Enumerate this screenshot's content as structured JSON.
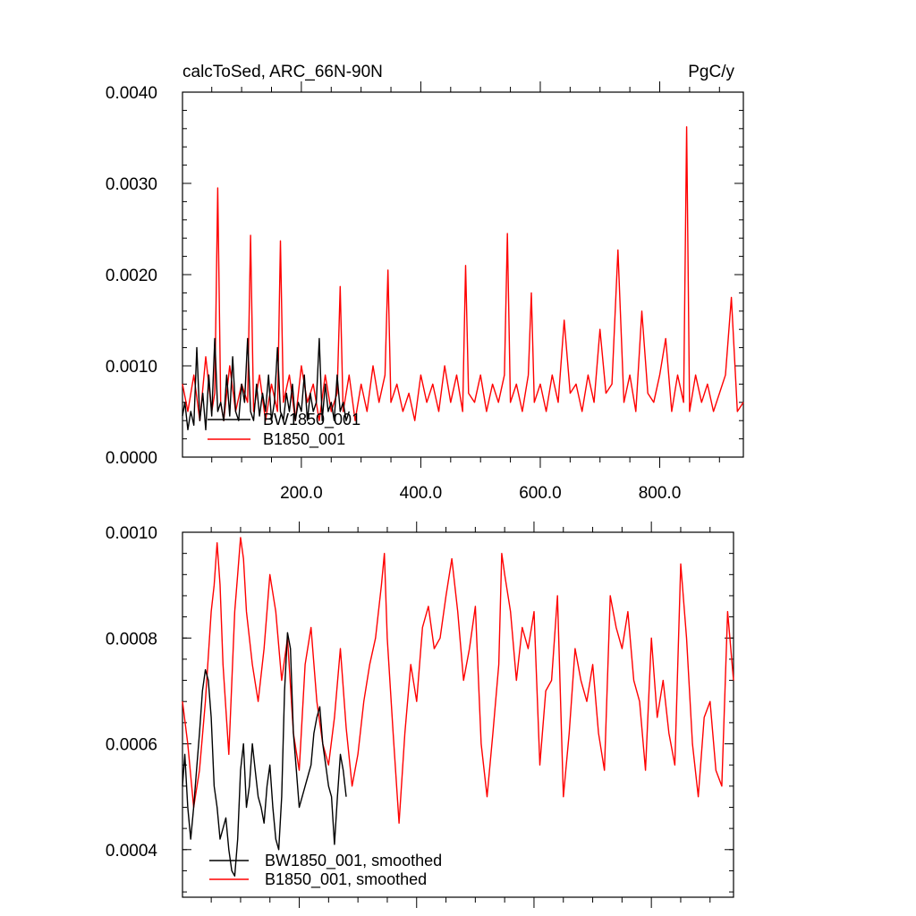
{
  "chart_data": [
    {
      "type": "line",
      "title": "calcToSed, ARC_66N-90N",
      "units": "PgC/y",
      "ylim": [
        0,
        0.004
      ],
      "xlim": [
        1,
        940
      ],
      "y_ticks": [
        0.0,
        0.001,
        0.002,
        0.003,
        0.004
      ],
      "y_tick_labels": [
        "0.0000",
        "0.0010",
        "0.0020",
        "0.0030",
        "0.0040"
      ],
      "x_ticks": [
        200,
        400,
        600,
        800
      ],
      "x_tick_labels": [
        "200.0",
        "400.0",
        "600.0",
        "800.0"
      ],
      "legend": [
        "BW1850_001",
        "B1850_001"
      ],
      "legend_placement": "bottom-left",
      "series": [
        {
          "name": "BW1850_001",
          "color": "#000000",
          "x": [
            1,
            5,
            10,
            15,
            20,
            25,
            30,
            35,
            40,
            45,
            50,
            55,
            60,
            65,
            70,
            75,
            80,
            85,
            90,
            95,
            100,
            105,
            110,
            115,
            120,
            125,
            130,
            135,
            140,
            145,
            150,
            155,
            160,
            165,
            170,
            175,
            180,
            185,
            190,
            195,
            200,
            205,
            210,
            215,
            220,
            225,
            230,
            235,
            240,
            245,
            250,
            255,
            260,
            265,
            270,
            275,
            280
          ],
          "values": [
            0.00045,
            0.0006,
            0.0003,
            0.0005,
            0.00035,
            0.0012,
            0.0004,
            0.0007,
            0.0003,
            0.0009,
            0.00045,
            0.0013,
            0.0005,
            0.0006,
            0.0004,
            0.0009,
            0.00045,
            0.0011,
            0.0005,
            0.0004,
            0.0008,
            0.0006,
            0.0013,
            0.0005,
            0.0004,
            0.0008,
            0.00045,
            0.0007,
            0.0005,
            0.0009,
            0.0004,
            0.0006,
            0.0012,
            0.0005,
            0.0004,
            0.0007,
            0.0005,
            0.0008,
            0.0004,
            0.0006,
            0.0005,
            0.0009,
            0.0004,
            0.0007,
            0.0005,
            0.0006,
            0.0013,
            0.0004,
            0.0008,
            0.0005,
            0.0006,
            0.0004,
            0.0009,
            0.0005,
            0.0006,
            0.0004,
            0.0005
          ]
        },
        {
          "name": "B1850_001",
          "color": "#ff0000",
          "x": [
            1,
            10,
            20,
            30,
            40,
            50,
            55,
            60,
            65,
            70,
            80,
            90,
            100,
            110,
            115,
            120,
            130,
            140,
            150,
            160,
            165,
            170,
            180,
            190,
            200,
            210,
            220,
            230,
            240,
            250,
            260,
            265,
            270,
            280,
            290,
            300,
            310,
            320,
            330,
            340,
            345,
            350,
            360,
            370,
            380,
            390,
            400,
            410,
            420,
            430,
            440,
            450,
            460,
            470,
            475,
            480,
            490,
            500,
            510,
            520,
            530,
            540,
            545,
            550,
            560,
            570,
            580,
            585,
            590,
            600,
            610,
            620,
            630,
            640,
            650,
            660,
            670,
            680,
            690,
            700,
            710,
            720,
            730,
            740,
            750,
            760,
            770,
            780,
            790,
            800,
            810,
            820,
            830,
            840,
            845,
            850,
            860,
            870,
            880,
            890,
            900,
            910,
            920,
            930,
            940
          ],
          "values": [
            0.0008,
            0.0005,
            0.0009,
            0.0004,
            0.0011,
            0.0005,
            0.0007,
            0.00295,
            0.0006,
            0.0004,
            0.001,
            0.0005,
            0.0008,
            0.0006,
            0.00243,
            0.0005,
            0.0009,
            0.0004,
            0.0008,
            0.0005,
            0.00237,
            0.0006,
            0.0009,
            0.0004,
            0.001,
            0.0006,
            0.0008,
            0.0004,
            0.0009,
            0.0005,
            0.0007,
            0.00187,
            0.0005,
            0.0009,
            0.0004,
            0.0008,
            0.0005,
            0.001,
            0.0006,
            0.0009,
            0.00205,
            0.0006,
            0.0008,
            0.0005,
            0.0007,
            0.0004,
            0.0009,
            0.0006,
            0.0008,
            0.0005,
            0.001,
            0.0006,
            0.0009,
            0.0005,
            0.0021,
            0.0007,
            0.0006,
            0.0009,
            0.0005,
            0.0008,
            0.0006,
            0.0009,
            0.00245,
            0.0006,
            0.0008,
            0.0005,
            0.0009,
            0.0018,
            0.0006,
            0.0008,
            0.0005,
            0.0009,
            0.0006,
            0.0015,
            0.0007,
            0.0008,
            0.0005,
            0.0009,
            0.0006,
            0.0014,
            0.0007,
            0.0008,
            0.00227,
            0.0006,
            0.0009,
            0.0005,
            0.0016,
            0.0007,
            0.0006,
            0.0009,
            0.0013,
            0.0005,
            0.0009,
            0.0006,
            0.00362,
            0.0005,
            0.0009,
            0.0006,
            0.0008,
            0.0005,
            0.0007,
            0.0009,
            0.00175,
            0.0005,
            0.0006
          ]
        }
      ]
    },
    {
      "type": "line",
      "ylim": [
        0.00031,
        0.001
      ],
      "xlim": [
        1,
        940
      ],
      "y_ticks": [
        0.0004,
        0.0006,
        0.0008,
        0.001
      ],
      "y_tick_labels": [
        "0.0004",
        "0.0006",
        "0.0008",
        "0.0010"
      ],
      "legend": [
        "BW1850_001, smoothed",
        "B1850_001, smoothed"
      ],
      "legend_placement": "bottom-left",
      "series": [
        {
          "name": "BW1850_001, smoothed",
          "color": "#000000",
          "x": [
            1,
            5,
            10,
            15,
            20,
            25,
            30,
            35,
            40,
            45,
            50,
            55,
            60,
            65,
            70,
            75,
            80,
            85,
            90,
            95,
            100,
            105,
            110,
            115,
            120,
            125,
            130,
            135,
            140,
            145,
            150,
            155,
            160,
            165,
            170,
            175,
            180,
            185,
            190,
            195,
            200,
            205,
            210,
            215,
            220,
            225,
            230,
            235,
            240,
            245,
            250,
            255,
            260,
            265,
            270,
            275,
            280
          ],
          "values": [
            0.00052,
            0.00058,
            0.00048,
            0.00042,
            0.00048,
            0.00055,
            0.00062,
            0.0007,
            0.00074,
            0.00072,
            0.00065,
            0.00052,
            0.00048,
            0.00042,
            0.00044,
            0.00046,
            0.0004,
            0.00036,
            0.00035,
            0.00042,
            0.00055,
            0.0006,
            0.00048,
            0.00052,
            0.0006,
            0.00055,
            0.0005,
            0.00048,
            0.00045,
            0.00052,
            0.00056,
            0.00048,
            0.00042,
            0.0004,
            0.0005,
            0.0007,
            0.00081,
            0.00078,
            0.00062,
            0.00055,
            0.00048,
            0.0005,
            0.00052,
            0.00054,
            0.00056,
            0.00062,
            0.00065,
            0.00067,
            0.0006,
            0.00056,
            0.00052,
            0.0005,
            0.00041,
            0.0005,
            0.00058,
            0.00055,
            0.0005
          ]
        },
        {
          "name": "B1850_001, smoothed",
          "color": "#ff0000",
          "x": [
            1,
            10,
            20,
            30,
            40,
            50,
            55,
            60,
            65,
            70,
            80,
            90,
            95,
            100,
            105,
            110,
            120,
            130,
            140,
            150,
            160,
            170,
            180,
            190,
            200,
            210,
            220,
            230,
            240,
            250,
            260,
            270,
            280,
            290,
            300,
            310,
            320,
            330,
            340,
            345,
            350,
            360,
            370,
            380,
            390,
            400,
            410,
            420,
            430,
            440,
            450,
            460,
            470,
            480,
            490,
            500,
            510,
            520,
            530,
            540,
            545,
            550,
            560,
            570,
            580,
            590,
            600,
            610,
            620,
            630,
            640,
            650,
            660,
            670,
            680,
            690,
            700,
            710,
            720,
            730,
            740,
            750,
            760,
            770,
            780,
            790,
            800,
            810,
            820,
            830,
            840,
            850,
            860,
            870,
            880,
            890,
            900,
            910,
            920,
            930,
            940
          ],
          "values": [
            0.00068,
            0.0006,
            0.00048,
            0.00055,
            0.00068,
            0.00085,
            0.0009,
            0.00098,
            0.0009,
            0.00075,
            0.00058,
            0.00085,
            0.00092,
            0.00099,
            0.00095,
            0.00085,
            0.00075,
            0.00068,
            0.00078,
            0.00092,
            0.00085,
            0.00072,
            0.0008,
            0.00062,
            0.00055,
            0.00075,
            0.00082,
            0.00068,
            0.0006,
            0.00056,
            0.00065,
            0.00078,
            0.00063,
            0.00052,
            0.00058,
            0.00068,
            0.00075,
            0.0008,
            0.0009,
            0.00096,
            0.0008,
            0.00062,
            0.00045,
            0.00062,
            0.00075,
            0.00068,
            0.00082,
            0.00086,
            0.00078,
            0.0008,
            0.00088,
            0.00095,
            0.00085,
            0.00072,
            0.00078,
            0.00086,
            0.0006,
            0.0005,
            0.00062,
            0.00075,
            0.00096,
            0.00092,
            0.00085,
            0.00072,
            0.00082,
            0.00078,
            0.00085,
            0.00056,
            0.0007,
            0.00072,
            0.00088,
            0.0005,
            0.00062,
            0.00078,
            0.00072,
            0.00068,
            0.00075,
            0.00062,
            0.00055,
            0.00088,
            0.00082,
            0.00078,
            0.00085,
            0.00072,
            0.00068,
            0.00055,
            0.0008,
            0.00065,
            0.00072,
            0.00062,
            0.00056,
            0.00094,
            0.0008,
            0.0006,
            0.0005,
            0.00065,
            0.00068,
            0.00055,
            0.00052,
            0.00085,
            0.00072
          ]
        }
      ]
    }
  ]
}
